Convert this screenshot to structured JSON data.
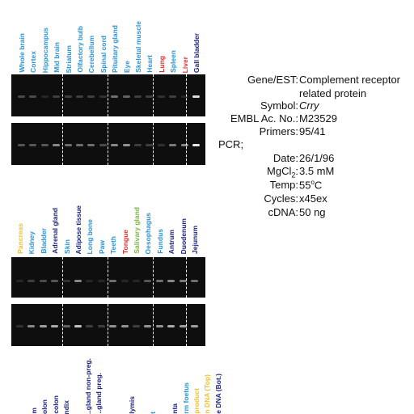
{
  "top_panel": {
    "labels": [
      {
        "text": "Whole brain",
        "color": "#2a93d5"
      },
      {
        "text": "Cortex",
        "color": "#2a93d5"
      },
      {
        "text": "Hippocampus",
        "color": "#2a93d5"
      },
      {
        "text": "Mid brain",
        "color": "#2a93d5"
      },
      {
        "text": "Striatum",
        "color": "#2a93d5"
      },
      {
        "text": "Olfactory bulb",
        "color": "#2a93d5"
      },
      {
        "text": "Cerebellum",
        "color": "#2a93d5"
      },
      {
        "text": "Spinal cord",
        "color": "#2a93d5"
      },
      {
        "text": "Pituitary gland",
        "color": "#2a93d5"
      },
      {
        "text": "Eye",
        "color": "#2a93d5"
      },
      {
        "text": "Skeletal muscle",
        "color": "#2a93d5"
      },
      {
        "text": "Heart",
        "color": "#2a93d5"
      },
      {
        "text": "Lung",
        "color": "#e32c2c"
      },
      {
        "text": "Spleen",
        "color": "#2a93d5"
      },
      {
        "text": "Liver",
        "color": "#e32c2c"
      },
      {
        "text": "Gall bladder",
        "color": "#1a237e"
      }
    ],
    "gel1_band_intensity": [
      0.25,
      0.25,
      0.1,
      0.2,
      0.2,
      0.2,
      0.2,
      0.15,
      0.4,
      0.35,
      0.2,
      0.2,
      0.15,
      0.2,
      0.1,
      0.85
    ],
    "gel2_band_intensity": [
      0.3,
      0.3,
      0.3,
      0.5,
      0.4,
      0.4,
      0.4,
      0.25,
      0.5,
      0.55,
      0.2,
      0.2,
      0.15,
      0.45,
      0.5,
      0.9
    ]
  },
  "middle_panel": {
    "labels": [
      {
        "text": "Pancreas",
        "color": "#f2c12e"
      },
      {
        "text": "Kidney",
        "color": "#2a93d5"
      },
      {
        "text": "Bladder",
        "color": "#2a93d5"
      },
      {
        "text": "Adrenal gland",
        "color": "#1a237e"
      },
      {
        "text": "Skin",
        "color": "#2a93d5"
      },
      {
        "text": "Adipose tissue",
        "color": "#1a237e"
      },
      {
        "text": "Long bone",
        "color": "#2a93d5"
      },
      {
        "text": "Paw",
        "color": "#2a93d5"
      },
      {
        "text": "Teeth",
        "color": "#2a93d5"
      },
      {
        "text": "Tongue",
        "color": "#e32c2c"
      },
      {
        "text": "Salivary gland",
        "color": "#7cb342"
      },
      {
        "text": "Oesophagus",
        "color": "#2a93d5"
      },
      {
        "text": "Fundus",
        "color": "#2a93d5"
      },
      {
        "text": "Antrum",
        "color": "#1a237e"
      },
      {
        "text": "Duodenum",
        "color": "#1a237e"
      },
      {
        "text": "Jejunum",
        "color": "#1a237e"
      }
    ],
    "gel1_band_intensity": [
      0.1,
      0.2,
      0.25,
      0.3,
      0.15,
      0.5,
      0.1,
      0.1,
      0.4,
      0.1,
      0.1,
      0.3,
      0.4,
      0.5,
      0.45,
      0.4
    ],
    "gel2_band_intensity": [
      0.15,
      0.5,
      0.6,
      0.65,
      0.35,
      0.75,
      0.2,
      0.2,
      0.55,
      0.55,
      0.2,
      0.55,
      0.55,
      0.65,
      0.6,
      0.6
    ]
  },
  "bottom_panel": {
    "labels": [
      {
        "text": "m",
        "color": "#1a237e"
      },
      {
        "text": "olon",
        "color": "#1a237e"
      },
      {
        "text": "colon",
        "color": "#1a237e"
      },
      {
        "text": "ndix",
        "color": "#1a237e"
      },
      {
        "text": "",
        "color": "#1a237e"
      },
      {
        "text": "..gland non-preg.",
        "color": "#1a237e"
      },
      {
        "text": "..gland preg.",
        "color": "#1a237e"
      },
      {
        "text": "",
        "color": "#1a237e"
      },
      {
        "text": "",
        "color": "#1a237e"
      },
      {
        "text": "lymis",
        "color": "#1a237e"
      },
      {
        "text": "",
        "color": "#1a237e"
      },
      {
        "text": "t",
        "color": "#2a93d5"
      },
      {
        "text": "",
        "color": "#1a237e"
      },
      {
        "text": "nta",
        "color": "#1a237e"
      },
      {
        "text": "rm foetus",
        "color": "#2a93d5"
      },
      {
        "text": "product",
        "color": "#f2c12e"
      },
      {
        "text": "n DNA (Top)",
        "color": "#f2c12e"
      },
      {
        "text": "e DNA (Bot.)",
        "color": "#1a237e"
      }
    ]
  },
  "info": {
    "gene_key": "Gene/EST:",
    "gene_value_line1": "Complement receptor",
    "gene_value_line2": "related protein",
    "symbol_key": "Symbol:",
    "symbol_value": "Crry",
    "embl_key": "EMBL Ac. No.:",
    "embl_value": "M23529",
    "primers_key": "Primers:",
    "primers_value": "95/41",
    "pcr_key": "PCR;",
    "date_key": "Date:",
    "date_value": "26/1/96",
    "mgcl_key_prefix": "MgCl",
    "mgcl_key_sub": "2",
    "mgcl_key_suffix": ":",
    "mgcl_value": "3.5 mM",
    "temp_key": "Temp:",
    "temp_value_num": "55",
    "temp_value_sup": "o",
    "temp_value_unit": "C",
    "cycles_key": "Cycles:",
    "cycles_value": "x45ex",
    "cdna_key": "cDNA:",
    "cdna_value": "50 ng"
  }
}
